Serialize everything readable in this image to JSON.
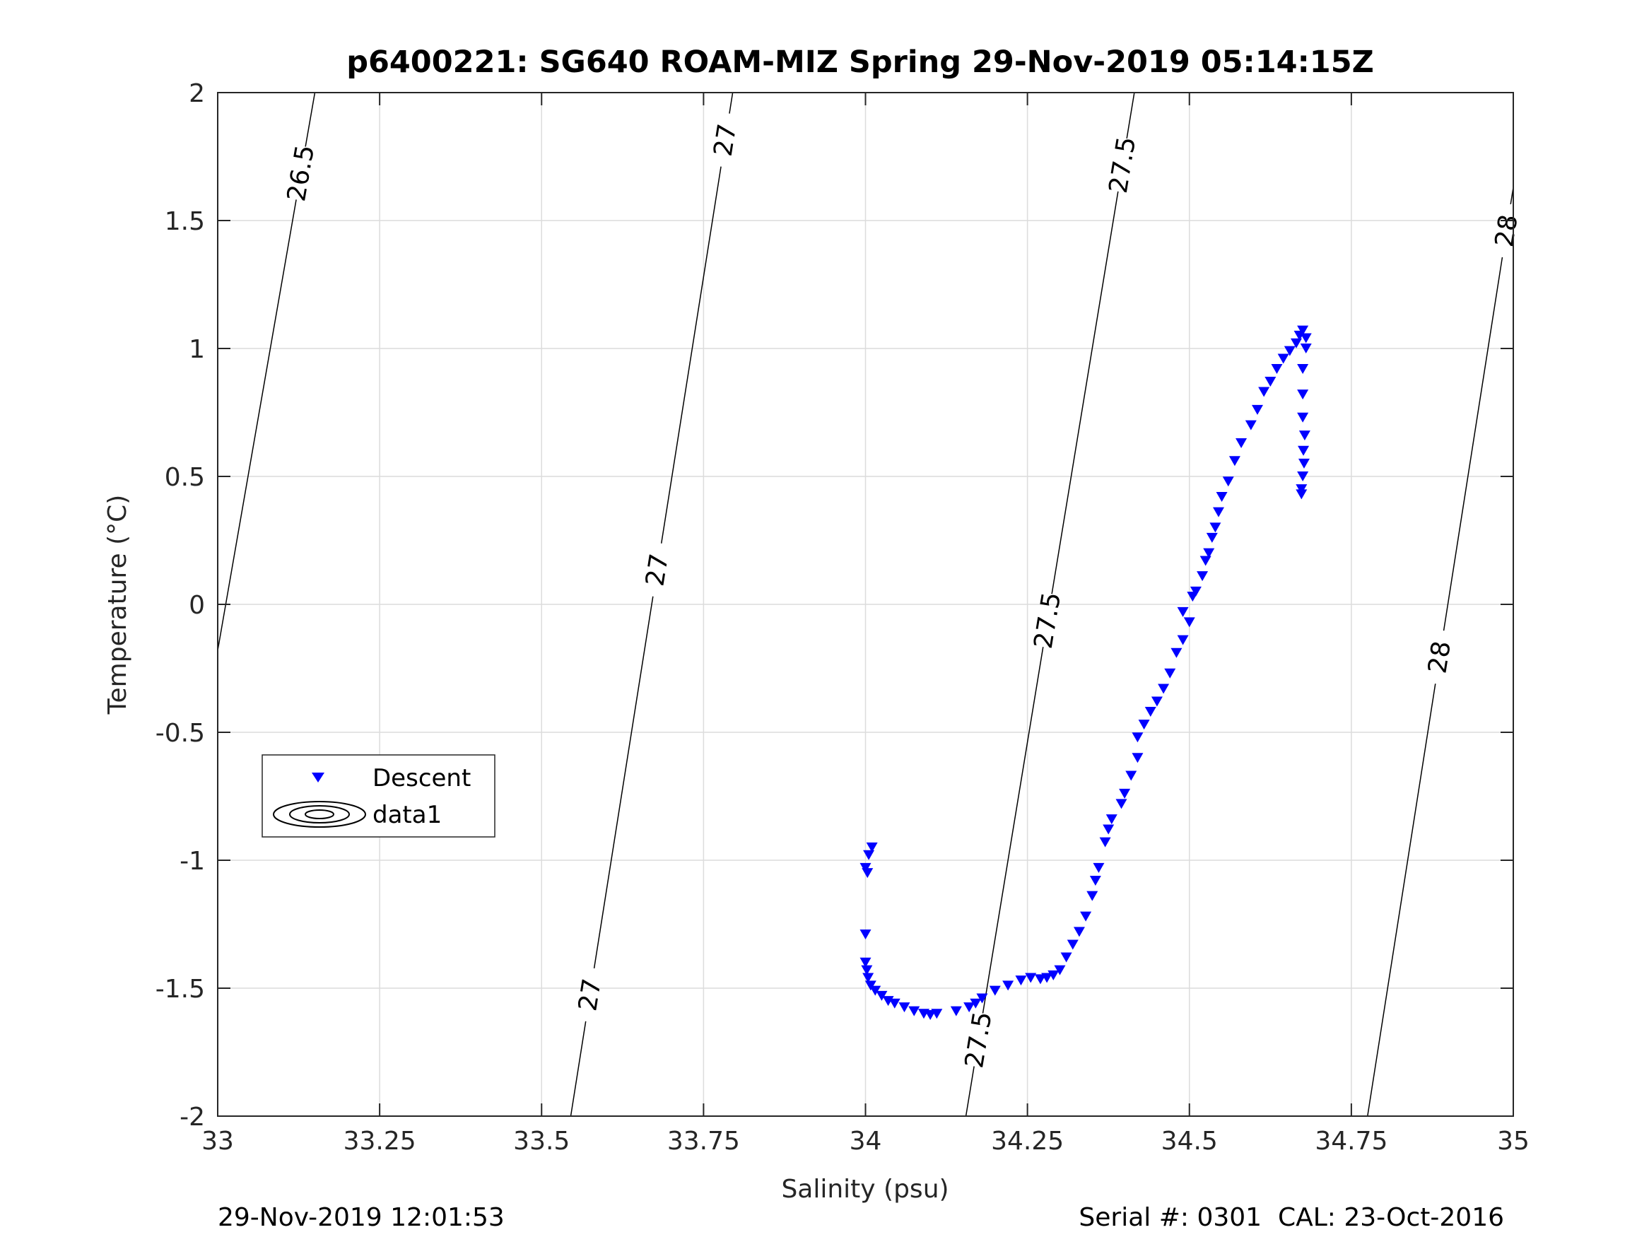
{
  "footer": {
    "left": "29-Nov-2019 12:01:53",
    "right": "Serial #: 0301  CAL: 23-Oct-2016"
  },
  "chart_data": {
    "type": "scatter",
    "title": "p6400221: SG640 ROAM-MIZ Spring 29-Nov-2019 05:14:15Z",
    "xlabel": "Salinity (psu)",
    "ylabel": "Temperature (°C)",
    "xlim": [
      33,
      35
    ],
    "ylim": [
      -2,
      2
    ],
    "x_ticks": [
      33,
      33.25,
      33.5,
      33.75,
      34,
      34.25,
      34.5,
      34.75,
      35
    ],
    "x_tick_labels": [
      "33",
      "33.25",
      "33.5",
      "33.75",
      "34",
      "34.25",
      "34.5",
      "34.75",
      "35"
    ],
    "y_ticks": [
      2,
      1.5,
      1,
      0.5,
      0,
      -0.5,
      -1,
      -1.5,
      -2
    ],
    "y_tick_labels": [
      "2",
      "1.5",
      "1",
      "0.5",
      "0",
      "-0.5",
      "-1",
      "-1.5",
      "-2"
    ],
    "grid": true,
    "legend": {
      "placement": "lower-left",
      "entries": [
        "Descent",
        "data1"
      ]
    },
    "series_color": "#0000ff",
    "series": [
      {
        "name": "Descent",
        "marker": "triangle-down",
        "points": [
          [
            34.01,
            -0.95
          ],
          [
            34.005,
            -0.98
          ],
          [
            34.0,
            -1.03
          ],
          [
            34.003,
            -1.05
          ],
          [
            34.0,
            -1.29
          ],
          [
            34.0,
            -1.4
          ],
          [
            34.002,
            -1.43
          ],
          [
            34.004,
            -1.46
          ],
          [
            34.008,
            -1.49
          ],
          [
            34.015,
            -1.51
          ],
          [
            34.025,
            -1.53
          ],
          [
            34.035,
            -1.55
          ],
          [
            34.045,
            -1.56
          ],
          [
            34.06,
            -1.575
          ],
          [
            34.075,
            -1.59
          ],
          [
            34.09,
            -1.6
          ],
          [
            34.1,
            -1.605
          ],
          [
            34.11,
            -1.6
          ],
          [
            34.14,
            -1.59
          ],
          [
            34.16,
            -1.575
          ],
          [
            34.17,
            -1.56
          ],
          [
            34.18,
            -1.54
          ],
          [
            34.2,
            -1.51
          ],
          [
            34.22,
            -1.49
          ],
          [
            34.24,
            -1.47
          ],
          [
            34.255,
            -1.46
          ],
          [
            34.27,
            -1.465
          ],
          [
            34.28,
            -1.46
          ],
          [
            34.29,
            -1.45
          ],
          [
            34.3,
            -1.43
          ],
          [
            34.31,
            -1.38
          ],
          [
            34.32,
            -1.33
          ],
          [
            34.33,
            -1.28
          ],
          [
            34.34,
            -1.22
          ],
          [
            34.35,
            -1.14
          ],
          [
            34.355,
            -1.08
          ],
          [
            34.36,
            -1.03
          ],
          [
            34.37,
            -0.93
          ],
          [
            34.375,
            -0.88
          ],
          [
            34.38,
            -0.84
          ],
          [
            34.395,
            -0.78
          ],
          [
            34.4,
            -0.74
          ],
          [
            34.41,
            -0.67
          ],
          [
            34.42,
            -0.6
          ],
          [
            34.42,
            -0.52
          ],
          [
            34.43,
            -0.47
          ],
          [
            34.44,
            -0.42
          ],
          [
            34.45,
            -0.38
          ],
          [
            34.46,
            -0.33
          ],
          [
            34.47,
            -0.27
          ],
          [
            34.48,
            -0.19
          ],
          [
            34.49,
            -0.14
          ],
          [
            34.5,
            -0.07
          ],
          [
            34.49,
            -0.03
          ],
          [
            34.505,
            0.03
          ],
          [
            34.51,
            0.05
          ],
          [
            34.52,
            0.11
          ],
          [
            34.525,
            0.17
          ],
          [
            34.53,
            0.2
          ],
          [
            34.535,
            0.26
          ],
          [
            34.54,
            0.3
          ],
          [
            34.545,
            0.36
          ],
          [
            34.55,
            0.42
          ],
          [
            34.56,
            0.48
          ],
          [
            34.57,
            0.56
          ],
          [
            34.58,
            0.63
          ],
          [
            34.595,
            0.7
          ],
          [
            34.605,
            0.76
          ],
          [
            34.615,
            0.83
          ],
          [
            34.625,
            0.87
          ],
          [
            34.635,
            0.92
          ],
          [
            34.645,
            0.96
          ],
          [
            34.655,
            0.99
          ],
          [
            34.665,
            1.02
          ],
          [
            34.67,
            1.05
          ],
          [
            34.675,
            1.07
          ],
          [
            34.68,
            1.04
          ],
          [
            34.68,
            1.0
          ],
          [
            34.675,
            0.92
          ],
          [
            34.675,
            0.82
          ],
          [
            34.675,
            0.73
          ],
          [
            34.678,
            0.66
          ],
          [
            34.676,
            0.6
          ],
          [
            34.677,
            0.55
          ],
          [
            34.675,
            0.5
          ],
          [
            34.673,
            0.45
          ],
          [
            34.673,
            0.43
          ]
        ]
      }
    ],
    "contours": [
      {
        "label": "26.5",
        "color": "#000000",
        "line": [
          [
            33.0,
            -0.18
          ],
          [
            33.15,
            2.0
          ]
        ],
        "labels_at": [
          [
            33.14,
            1.68
          ]
        ]
      },
      {
        "label": "27",
        "color": "#000000",
        "line": [
          [
            33.545,
            -2.0
          ],
          [
            33.795,
            2.0
          ]
        ],
        "labels_at": [
          [
            33.56,
            -1.52
          ],
          [
            33.64,
            0.15
          ],
          [
            33.77,
            1.82
          ]
        ]
      },
      {
        "label": "27.5",
        "color": "#000000",
        "line": [
          [
            34.155,
            -2.0
          ],
          [
            34.415,
            2.0
          ]
        ],
        "labels_at": [
          [
            34.17,
            -1.7
          ],
          [
            34.25,
            -0.05
          ],
          [
            34.39,
            1.72
          ]
        ]
      },
      {
        "label": "28",
        "color": "#000000",
        "line": [
          [
            34.775,
            -2.0
          ],
          [
            35.0,
            1.63
          ]
        ],
        "labels_at": [
          [
            34.87,
            -0.2
          ],
          [
            34.99,
            1.46
          ]
        ]
      }
    ]
  }
}
